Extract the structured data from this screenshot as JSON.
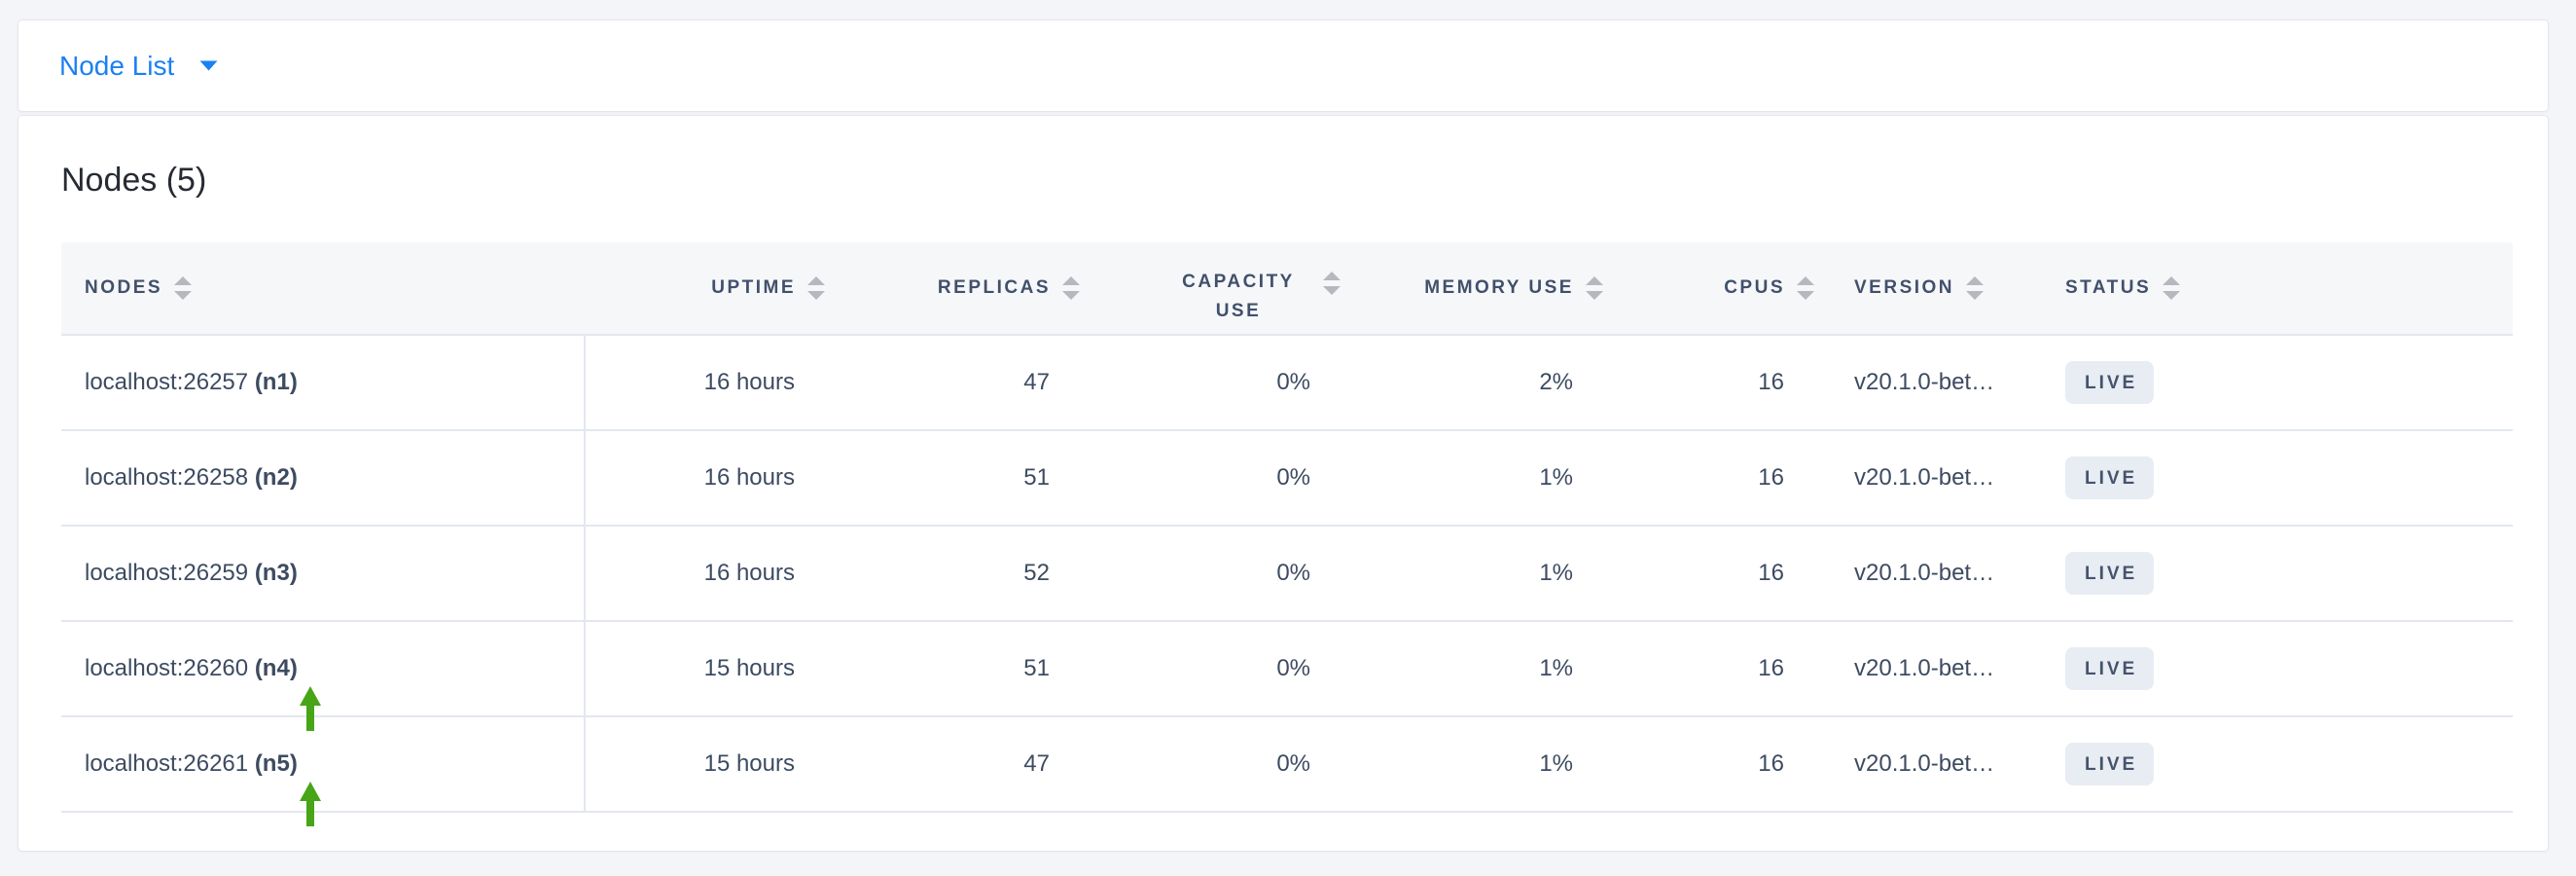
{
  "topbar": {
    "title": "Node List"
  },
  "main": {
    "heading": "Nodes (5)",
    "table": {
      "columns": [
        {
          "key": "nodes",
          "label": "NODES",
          "align": "left",
          "wrap": false
        },
        {
          "key": "uptime",
          "label": "UPTIME",
          "align": "right",
          "wrap": false
        },
        {
          "key": "replicas",
          "label": "REPLICAS",
          "align": "right",
          "wrap": false
        },
        {
          "key": "capacity",
          "label": "CAPACITY USE",
          "align": "right",
          "wrap": true
        },
        {
          "key": "memory",
          "label": "MEMORY USE",
          "align": "right",
          "wrap": false
        },
        {
          "key": "cpus",
          "label": "CPUS",
          "align": "right",
          "wrap": false
        },
        {
          "key": "version",
          "label": "VERSION",
          "align": "left",
          "wrap": false
        },
        {
          "key": "status",
          "label": "STATUS",
          "align": "left",
          "wrap": false
        }
      ],
      "rows": [
        {
          "address": "localhost:26257",
          "id": "(n1)",
          "uptime": "16 hours",
          "replicas": "47",
          "capacity": "0%",
          "memory": "2%",
          "cpus": "16",
          "version": "v20.1.0-bet…",
          "status": "LIVE",
          "annotated": false
        },
        {
          "address": "localhost:26258",
          "id": "(n2)",
          "uptime": "16 hours",
          "replicas": "51",
          "capacity": "0%",
          "memory": "1%",
          "cpus": "16",
          "version": "v20.1.0-bet…",
          "status": "LIVE",
          "annotated": false
        },
        {
          "address": "localhost:26259",
          "id": "(n3)",
          "uptime": "16 hours",
          "replicas": "52",
          "capacity": "0%",
          "memory": "1%",
          "cpus": "16",
          "version": "v20.1.0-bet…",
          "status": "LIVE",
          "annotated": false
        },
        {
          "address": "localhost:26260",
          "id": "(n4)",
          "uptime": "15 hours",
          "replicas": "51",
          "capacity": "0%",
          "memory": "1%",
          "cpus": "16",
          "version": "v20.1.0-bet…",
          "status": "LIVE",
          "annotated": true
        },
        {
          "address": "localhost:26261",
          "id": "(n5)",
          "uptime": "15 hours",
          "replicas": "47",
          "capacity": "0%",
          "memory": "1%",
          "cpus": "16",
          "version": "v20.1.0-bet…",
          "status": "LIVE",
          "annotated": true
        }
      ]
    }
  },
  "colors": {
    "accent_blue": "#1a80f3",
    "page_background": "#f4f5f9",
    "header_text": "#41506b",
    "cell_text": "#3d4b61",
    "badge_background": "#e8ecf3",
    "badge_text": "#44546b",
    "sort_icon_gray": "#b5b8bf",
    "row_border": "#e3e7ee",
    "annotation_arrow_green": "#47a517"
  }
}
